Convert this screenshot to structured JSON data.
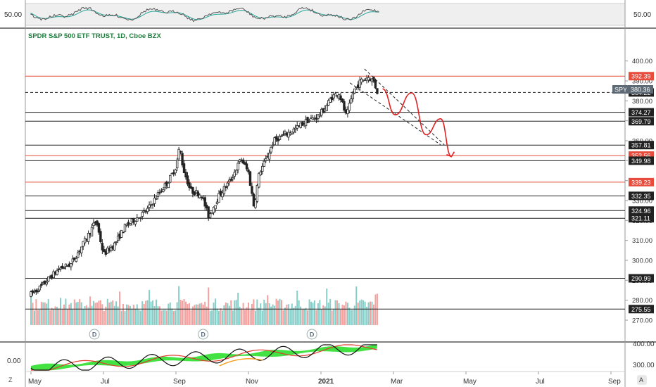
{
  "header": {
    "symbol_title": "SPDR S&P 500 ETF TRUST, 1D, Cboe BZX"
  },
  "colors": {
    "title": "#1e7d3c",
    "up": "#26a69a",
    "down": "#ef5350",
    "candle": "#222222",
    "hline_black": "#222222",
    "hline_red": "#e74c3c",
    "projection": "#e02020",
    "rsi_line": "#555555",
    "rsi_signal": "#26a69a",
    "ind_green": "#22dd22",
    "ind_black": "#111111",
    "ind_red": "#e23b2e",
    "ind_orange": "#f39c12",
    "tag_bg": "#222222",
    "tag_red": "#e74c3c",
    "spy_tag": "#5d6a75"
  },
  "top_panel": {
    "left_value": "50.00",
    "right_value": "50.00"
  },
  "bottom_panel": {
    "left_value": "0.00",
    "right_ticks": [
      "400.00",
      "300.00"
    ]
  },
  "spy_tag": {
    "symbol": "SPY",
    "price": "380.36"
  },
  "corner_labels": {
    "left": "Z",
    "right": "A"
  },
  "chart_data": {
    "type": "candlestick",
    "title": "SPDR S&P 500 ETF TRUST, 1D, Cboe BZX",
    "ylim": [
      264,
      408
    ],
    "y_ticks": [
      270,
      280,
      290,
      300,
      310,
      320,
      330,
      340,
      350,
      360,
      370,
      380,
      390,
      400
    ],
    "y_tick_labels": [
      "270.00",
      "280.00",
      "290.00",
      "300.00",
      "310.00",
      "320.00",
      "330.00",
      "340.00",
      "350.00",
      "360.00",
      "370.00",
      "380.00",
      "390.00",
      "400.00"
    ],
    "x_labels": [
      {
        "text": "May",
        "month": 0
      },
      {
        "text": "Jul",
        "month": 2
      },
      {
        "text": "Sep",
        "month": 4
      },
      {
        "text": "Nov",
        "month": 6
      },
      {
        "text": "2021",
        "month": 8
      },
      {
        "text": "Mar",
        "month": 10
      },
      {
        "text": "May",
        "month": 12
      },
      {
        "text": "Jul",
        "month": 14
      },
      {
        "text": "Sep",
        "month": 16
      }
    ],
    "price_path": [
      [
        0,
        283
      ],
      [
        0.3,
        287
      ],
      [
        0.5,
        291
      ],
      [
        0.8,
        296
      ],
      [
        1.1,
        298
      ],
      [
        1.3,
        304
      ],
      [
        1.5,
        310
      ],
      [
        1.8,
        320
      ],
      [
        2.0,
        303
      ],
      [
        2.3,
        308
      ],
      [
        2.6,
        317
      ],
      [
        2.9,
        321
      ],
      [
        3.2,
        325
      ],
      [
        3.5,
        333
      ],
      [
        3.8,
        340
      ],
      [
        4.0,
        347
      ],
      [
        4.1,
        357
      ],
      [
        4.2,
        346
      ],
      [
        4.4,
        335
      ],
      [
        4.7,
        333
      ],
      [
        4.9,
        322
      ],
      [
        5.2,
        333
      ],
      [
        5.5,
        340
      ],
      [
        5.8,
        351
      ],
      [
        6.0,
        344
      ],
      [
        6.15,
        327
      ],
      [
        6.3,
        344
      ],
      [
        6.5,
        351
      ],
      [
        6.7,
        360
      ],
      [
        7.0,
        363
      ],
      [
        7.3,
        366
      ],
      [
        7.6,
        370
      ],
      [
        7.9,
        372
      ],
      [
        8.1,
        376
      ],
      [
        8.3,
        382
      ],
      [
        8.5,
        384
      ],
      [
        8.7,
        372
      ],
      [
        8.9,
        385
      ],
      [
        9.1,
        390
      ],
      [
        9.3,
        392
      ],
      [
        9.45,
        390
      ],
      [
        9.6,
        382
      ]
    ],
    "horizontal_levels": [
      {
        "value": 392.39,
        "label": "392.39",
        "color": "red"
      },
      {
        "value": 384.22,
        "label": "384.22",
        "color": "black",
        "dashed": true
      },
      {
        "value": 374.27,
        "label": "374.27",
        "color": "black"
      },
      {
        "value": 369.79,
        "label": "369.79",
        "color": "black"
      },
      {
        "value": 357.81,
        "label": "357.81",
        "color": "black"
      },
      {
        "value": 352.56,
        "label": "352.56",
        "color": "red"
      },
      {
        "value": 349.98,
        "label": "349.98",
        "color": "black"
      },
      {
        "value": 339.23,
        "label": "339.23",
        "color": "red"
      },
      {
        "value": 332.35,
        "label": "332.35",
        "color": "black"
      },
      {
        "value": 324.96,
        "label": "324.96",
        "color": "black"
      },
      {
        "value": 321.11,
        "label": "321.11",
        "color": "black"
      },
      {
        "value": 290.99,
        "label": "290.99",
        "color": "black"
      },
      {
        "value": 275.55,
        "label": "275.55",
        "color": "black"
      }
    ],
    "last_price": 380.36,
    "channel_lines": [
      {
        "from": [
          9.2,
          396
        ],
        "to": [
          11.4,
          358
        ]
      },
      {
        "from": [
          8.8,
          389
        ],
        "to": [
          11.3,
          358
        ]
      }
    ],
    "projection": [
      [
        9.7,
        386
      ],
      [
        10.05,
        373
      ],
      [
        10.5,
        384
      ],
      [
        10.9,
        363
      ],
      [
        11.3,
        371
      ],
      [
        11.6,
        352
      ]
    ],
    "dividend_markers": [
      {
        "month": 1.75,
        "label": "D"
      },
      {
        "month": 4.75,
        "label": "D"
      },
      {
        "month": 7.75,
        "label": "D"
      }
    ],
    "volume_scale_ylim": [
      0,
      100
    ]
  }
}
